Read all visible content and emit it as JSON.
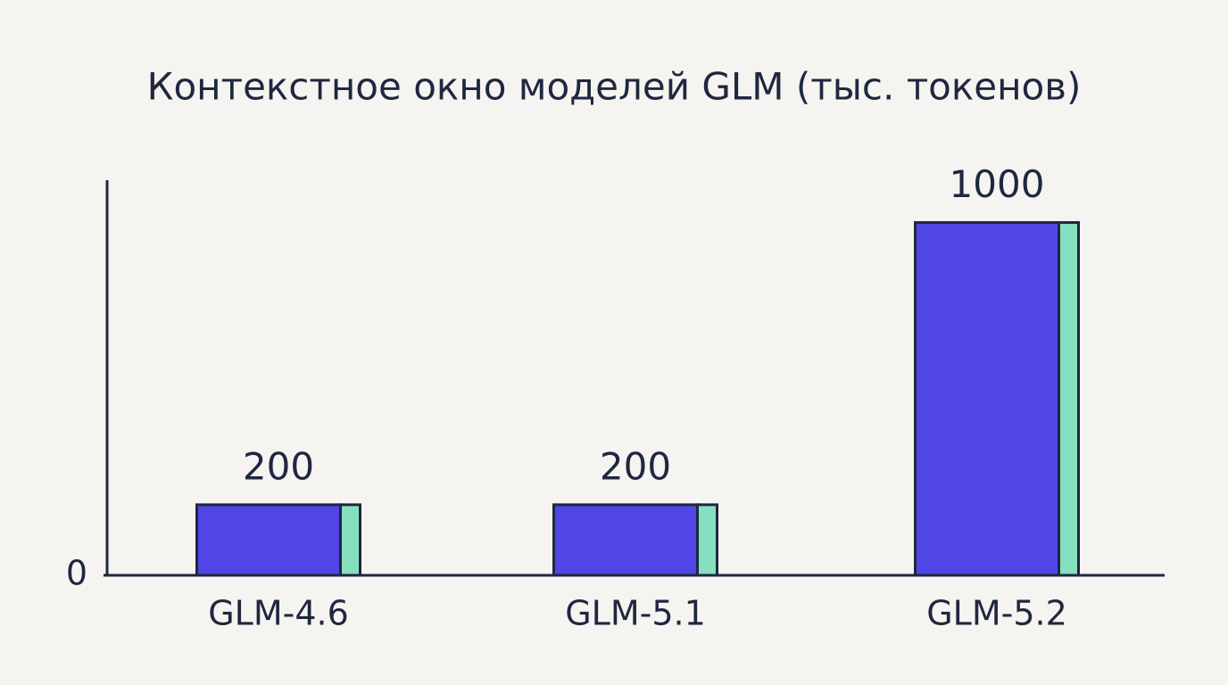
{
  "chart_data": {
    "type": "bar",
    "title": "Контекстное окно моделей GLM (тыс. токенов)",
    "categories": [
      "GLM-4.6",
      "GLM-5.1",
      "GLM-5.2"
    ],
    "values": [
      200,
      200,
      1000
    ],
    "color": "#4f46e5",
    "side_color": "#86e0c0",
    "ylim": [
      0,
      1120
    ],
    "yticks": [
      0
    ],
    "grid": false
  }
}
